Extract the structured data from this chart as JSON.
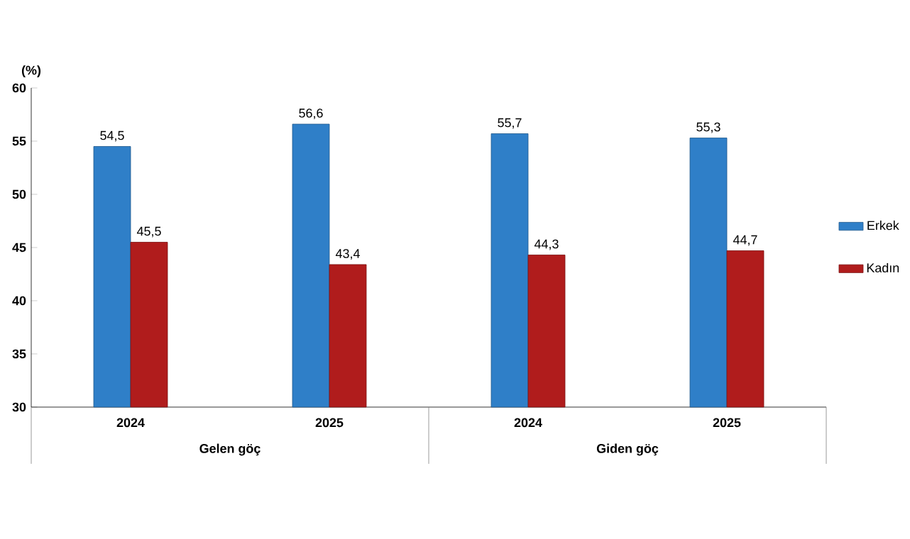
{
  "chart_data": {
    "type": "bar",
    "ylabel": "(%)",
    "categories": [
      "2024",
      "2025",
      "2024",
      "2025"
    ],
    "series": [
      {
        "name": "Erkek",
        "color": "#2f7fc8",
        "values": [
          54.5,
          56.6,
          55.7,
          55.3
        ],
        "value_labels": [
          "54,5",
          "56,6",
          "55,7",
          "55,3"
        ]
      },
      {
        "name": "Kadın",
        "color": "#b01c1c",
        "values": [
          45.5,
          43.4,
          44.3,
          44.7
        ],
        "value_labels": [
          "45,5",
          "43,4",
          "44,3",
          "44,7"
        ]
      }
    ],
    "annotations": [
      "Gelen göç",
      "Giden göç"
    ],
    "ylim": [
      30,
      60
    ],
    "yticks": [
      30,
      35,
      40,
      45,
      50,
      55,
      60
    ],
    "grid": false,
    "legend": "right"
  }
}
